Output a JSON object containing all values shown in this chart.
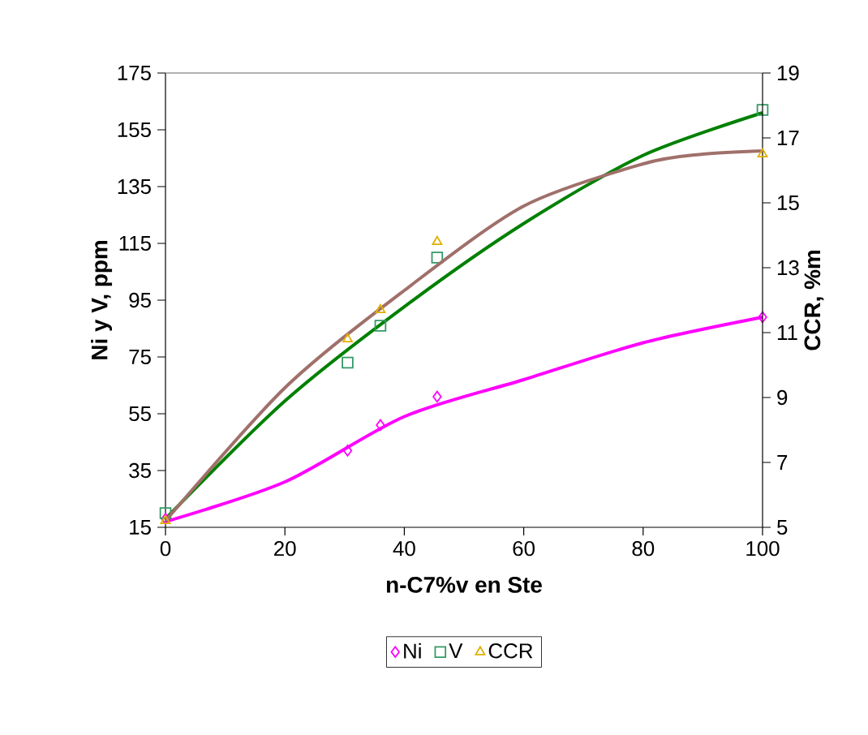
{
  "chart_data": {
    "type": "scatter",
    "xlabel": "n-C7%v en Ste",
    "ylabel": "Ni y V, ppm",
    "y2label": "CCR, %m",
    "xlim": [
      0,
      100
    ],
    "xticks": [
      0,
      20,
      40,
      60,
      80,
      100
    ],
    "ylim": [
      15,
      175
    ],
    "yticks": [
      15,
      35,
      55,
      75,
      95,
      115,
      135,
      155,
      175
    ],
    "y2lim": [
      5,
      19
    ],
    "y2ticks": [
      5,
      7,
      9,
      11,
      13,
      15,
      17,
      19
    ],
    "legend": "bottom",
    "grid": false,
    "series": [
      {
        "name": "Ni",
        "marker": "diamond",
        "color": "#ff00ff",
        "x": [
          0,
          30.5,
          36,
          45.5,
          100
        ],
        "values": [
          18,
          42,
          51,
          61,
          89
        ]
      },
      {
        "name": "V",
        "marker": "square",
        "color": "#339966",
        "x": [
          0,
          30.5,
          36,
          45.5,
          100
        ],
        "values": [
          20,
          73,
          86,
          110,
          162
        ]
      },
      {
        "name": "CCR",
        "marker": "triangle",
        "axis": "y2",
        "color": "#e0b000",
        "x": [
          0,
          30.5,
          36,
          45.5,
          100
        ],
        "values": [
          5.2,
          10.8,
          11.7,
          13.8,
          16.5
        ]
      },
      {
        "type": "line",
        "color": "#ff00ff",
        "x": [
          0,
          20,
          40,
          60,
          80,
          100
        ],
        "values": [
          17,
          31,
          54,
          67,
          80,
          89
        ]
      },
      {
        "type": "line",
        "color": "#008000",
        "x": [
          0,
          20,
          40,
          60,
          80,
          100
        ],
        "values": [
          18,
          59.5,
          92.7,
          122,
          146,
          161
        ]
      },
      {
        "type": "line",
        "axis": "y2",
        "color": "#a0706a",
        "x": [
          0,
          20,
          40,
          60,
          80,
          90,
          100
        ],
        "values": [
          5.2,
          9.3,
          12.3,
          14.9,
          16.2,
          16.5,
          16.6
        ]
      }
    ]
  }
}
